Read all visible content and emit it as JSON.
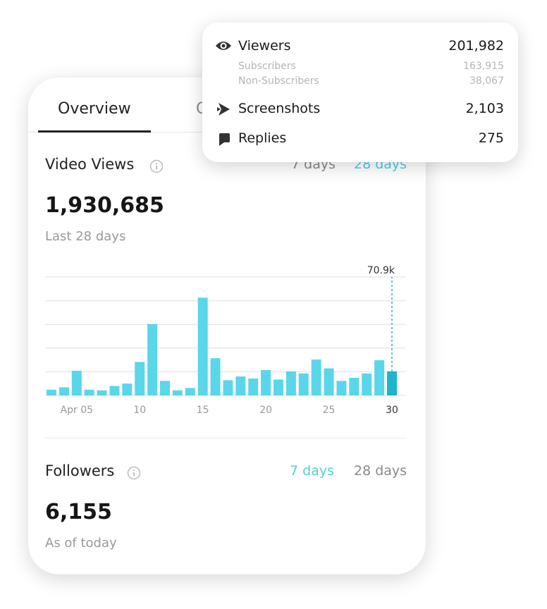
{
  "tabs": [
    "Overview",
    "C"
  ],
  "video_views": {
    "title": "Video Views",
    "ranges": [
      "7 days",
      "28 days"
    ],
    "total": "1,930,685",
    "subtitle": "Last 28 days"
  },
  "chart_data": {
    "type": "bar",
    "categories": [
      null,
      null,
      "Apr 05",
      null,
      null,
      null,
      null,
      "10",
      null,
      null,
      null,
      null,
      "15",
      null,
      null,
      null,
      null,
      "20",
      null,
      null,
      null,
      null,
      "25",
      null,
      null,
      null,
      null,
      "30"
    ],
    "values": [
      17,
      24,
      73,
      17,
      15,
      28,
      35,
      99,
      211,
      43,
      15,
      22,
      289,
      110,
      45,
      56,
      50,
      75,
      47,
      71,
      65,
      106,
      80,
      43,
      52,
      65,
      104,
      70.9
    ],
    "value_labels": [
      null,
      null,
      null,
      null,
      null,
      null,
      null,
      null,
      null,
      null,
      null,
      null,
      null,
      null,
      null,
      null,
      null,
      null,
      null,
      null,
      null,
      null,
      null,
      null,
      null,
      null,
      null,
      "70.9k"
    ],
    "color": "#5ad6ea",
    "highlight_color": "#1cb5c9",
    "ylim": [
      0,
      350
    ],
    "yticks": [
      0,
      70,
      140,
      210,
      280,
      350
    ],
    "grid": true
  },
  "followers": {
    "title": "Followers",
    "ranges": [
      "7 days",
      "28 days"
    ],
    "total": "6,155",
    "subtitle": "As of today"
  },
  "popup": {
    "viewers": {
      "label": "Viewers",
      "value": "201,982"
    },
    "subscribers": {
      "label": "Subscribers",
      "value": "163,915"
    },
    "non_subscribers": {
      "label": "Non-Subscribers",
      "value": "38,067"
    },
    "screenshots": {
      "label": "Screenshots",
      "value": "2,103"
    },
    "replies": {
      "label": "Replies",
      "value": "275"
    }
  }
}
